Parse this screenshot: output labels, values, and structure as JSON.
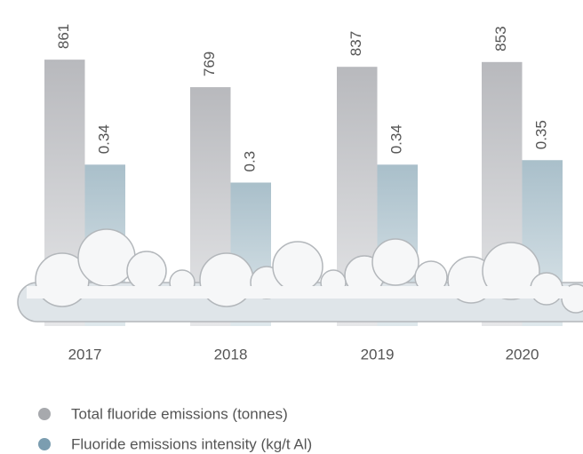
{
  "chart_data": {
    "type": "bar",
    "categories": [
      "2017",
      "2018",
      "2019",
      "2020"
    ],
    "series": [
      {
        "name": "Total fluoride emissions (tonnes)",
        "color": "#a7a9ad",
        "values": [
          861,
          769,
          837,
          853
        ]
      },
      {
        "name": "Fluoride emissions intensity (kg/t Al)",
        "color": "#7b9db0",
        "values": [
          0.34,
          0.3,
          0.34,
          0.35
        ],
        "axis": "y2"
      }
    ],
    "ylim": [
      0,
      900
    ],
    "y2lim": [
      0,
      0.6
    ]
  }
}
